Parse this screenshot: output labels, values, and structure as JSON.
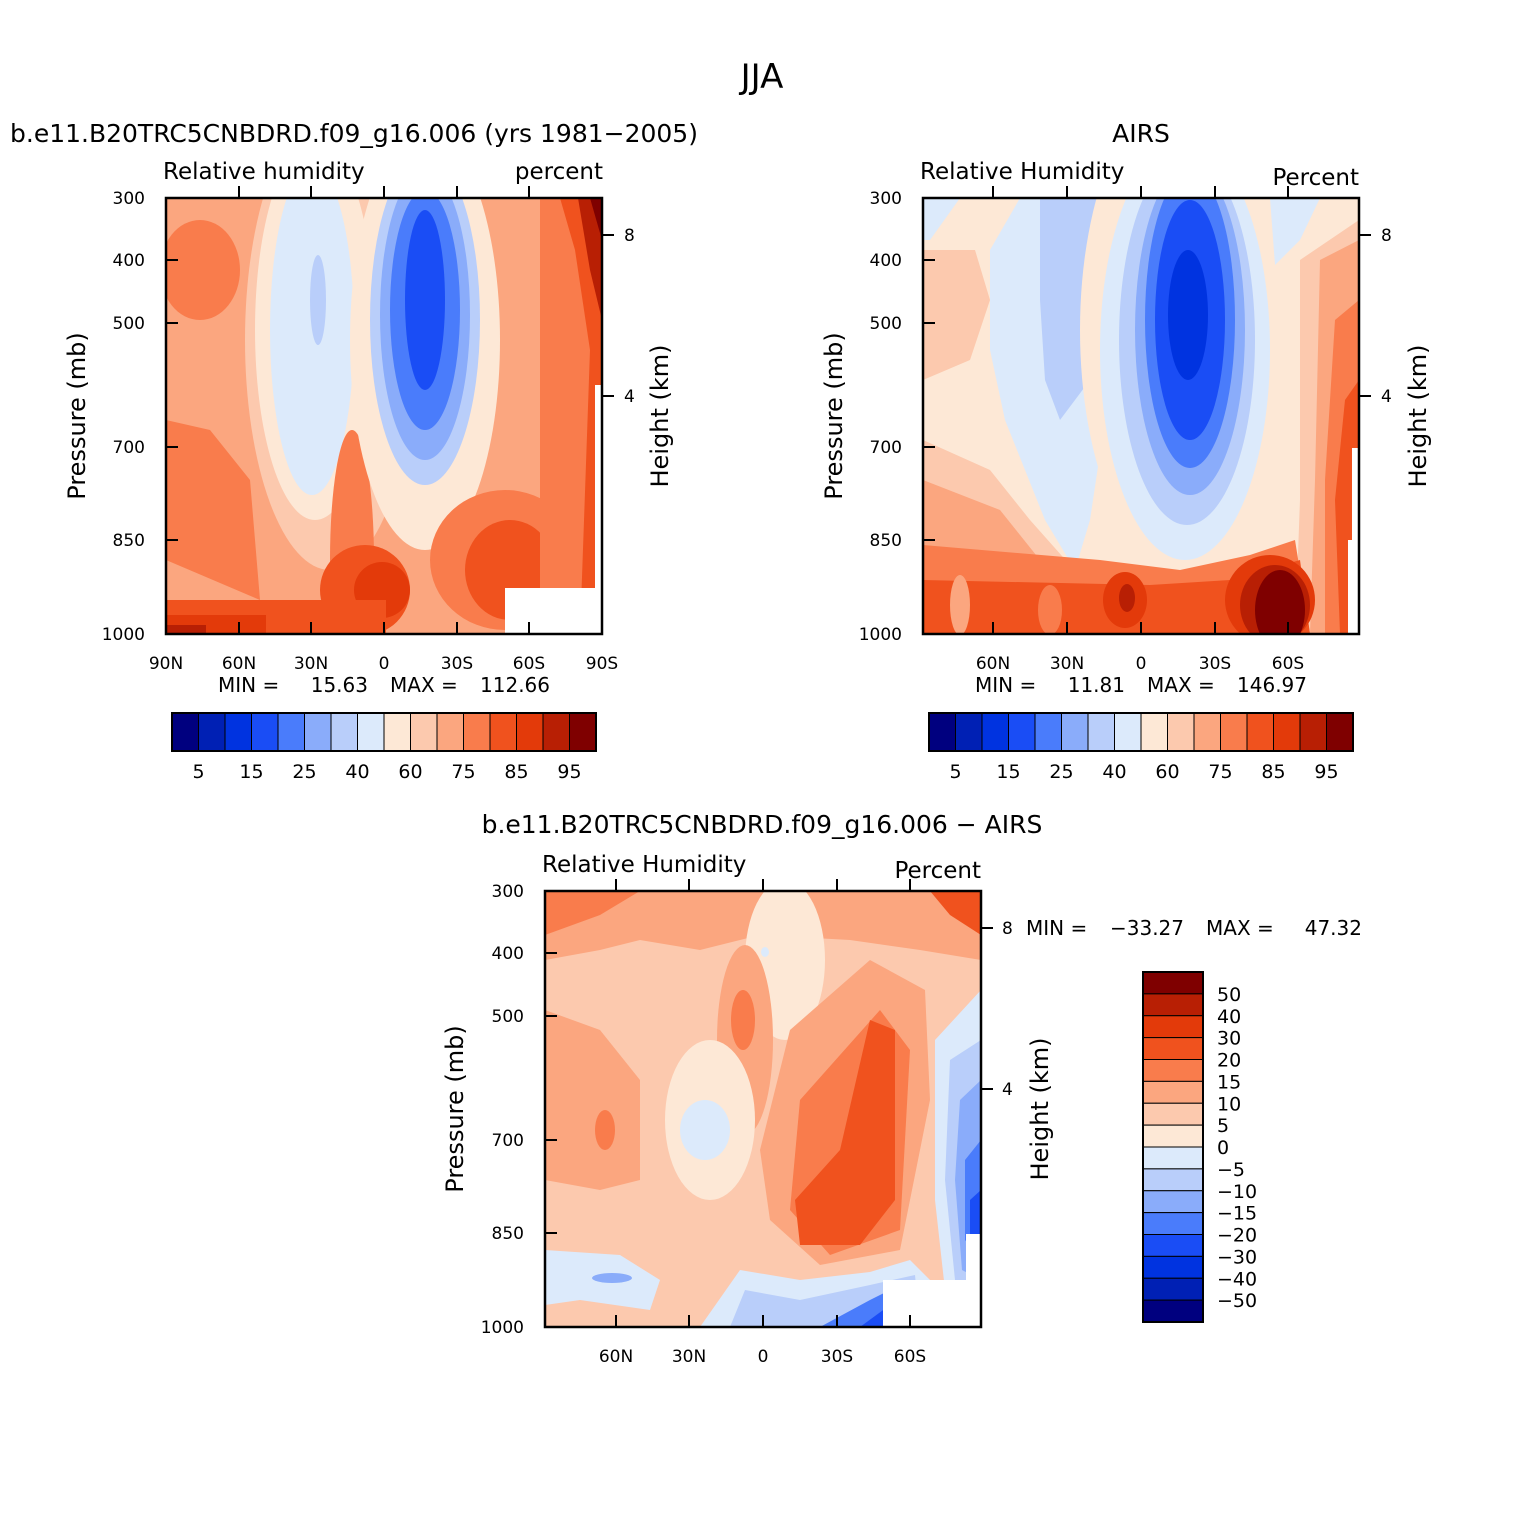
{
  "page_title": "JJA",
  "chart_data": [
    {
      "type": "heatmap",
      "title": "b.e11.B20TRC5CNBDRD.f09_g16.006 (yrs 1981−2005)",
      "left_label": "Relative humidity",
      "right_label": "percent",
      "ylabel": "Pressure (mb)",
      "y2label": "Height (km)",
      "x_tick_labels": [
        "90N",
        "60N",
        "30N",
        "0",
        "30S",
        "60S",
        "90S"
      ],
      "y_tick_labels": [
        "300",
        "400",
        "500",
        "700",
        "850",
        "1000"
      ],
      "y2_tick_labels": [
        "8",
        "4"
      ],
      "ylim": [
        1000,
        300
      ],
      "min_label": "MIN =",
      "min_value": "15.63",
      "max_label": "MAX =",
      "max_value": "112.66",
      "colorbar": {
        "orientation": "horizontal",
        "labels": [
          "5",
          "15",
          "25",
          "40",
          "60",
          "75",
          "85",
          "95"
        ],
        "colors": [
          "#00007f",
          "#0020b4",
          "#0033e0",
          "#1a4df5",
          "#4a7cfb",
          "#8aacfa",
          "#b9cefa",
          "#dceafb",
          "#fde8d6",
          "#fcc9ae",
          "#fba67f",
          "#f97c4c",
          "#f0521e",
          "#e33a0a",
          "#b81f04",
          "#7f0000"
        ]
      }
    },
    {
      "type": "heatmap",
      "title": "AIRS",
      "left_label": "Relative Humidity",
      "right_label": "Percent",
      "ylabel": "Pressure (mb)",
      "y2label": "Height (km)",
      "x_tick_labels": [
        "60N",
        "30N",
        "0",
        "30S",
        "60S"
      ],
      "y_tick_labels": [
        "300",
        "400",
        "500",
        "700",
        "850",
        "1000"
      ],
      "y2_tick_labels": [
        "8",
        "4"
      ],
      "ylim": [
        1000,
        300
      ],
      "min_label": "MIN =",
      "min_value": "11.81",
      "max_label": "MAX =",
      "max_value": "146.97",
      "colorbar": {
        "orientation": "horizontal",
        "labels": [
          "5",
          "15",
          "25",
          "40",
          "60",
          "75",
          "85",
          "95"
        ],
        "colors": [
          "#00007f",
          "#0020b4",
          "#0033e0",
          "#1a4df5",
          "#4a7cfb",
          "#8aacfa",
          "#b9cefa",
          "#dceafb",
          "#fde8d6",
          "#fcc9ae",
          "#fba67f",
          "#f97c4c",
          "#f0521e",
          "#e33a0a",
          "#b81f04",
          "#7f0000"
        ]
      }
    },
    {
      "type": "heatmap",
      "title": "b.e11.B20TRC5CNBDRD.f09_g16.006 − AIRS",
      "left_label": "Relative Humidity",
      "right_label": "Percent",
      "ylabel": "Pressure (mb)",
      "y2label": "Height (km)",
      "x_tick_labels": [
        "60N",
        "30N",
        "0",
        "30S",
        "60S"
      ],
      "y_tick_labels": [
        "300",
        "400",
        "500",
        "700",
        "850",
        "1000"
      ],
      "y2_tick_labels": [
        "8",
        "4"
      ],
      "ylim": [
        1000,
        300
      ],
      "min_label": "MIN =",
      "min_value": "−33.27",
      "max_label": "MAX =",
      "max_value": "47.32",
      "colorbar": {
        "orientation": "vertical",
        "labels": [
          "50",
          "40",
          "30",
          "20",
          "15",
          "10",
          "5",
          "0",
          "−5",
          "−10",
          "−15",
          "−20",
          "−30",
          "−40",
          "−50"
        ],
        "colors": [
          "#7f0000",
          "#b81f04",
          "#e33a0a",
          "#f0521e",
          "#f97c4c",
          "#fba67f",
          "#fcc9ae",
          "#fde8d6",
          "#dceafb",
          "#b9cefa",
          "#8aacfa",
          "#4a7cfb",
          "#1a4df5",
          "#0033e0",
          "#0020b4",
          "#00007f"
        ]
      }
    }
  ]
}
